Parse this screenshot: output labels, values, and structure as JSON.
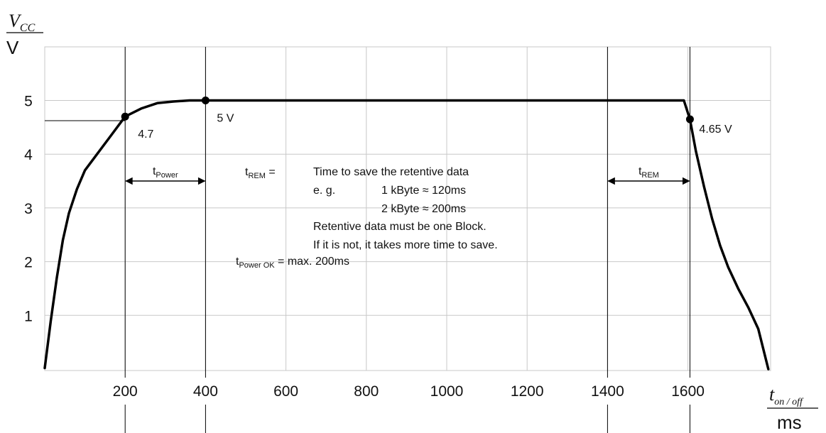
{
  "chart_data": {
    "type": "line",
    "title": "",
    "xlabel": {
      "var": "t",
      "sub": "on / off",
      "unit": "ms"
    },
    "ylabel": {
      "var": "V",
      "sub": "CC",
      "unit": "V"
    },
    "xlim": [
      0,
      1800
    ],
    "ylim": [
      0,
      6
    ],
    "grid": true,
    "x_ticks": [
      "200",
      "400",
      "600",
      "800",
      "1000",
      "1200",
      "1400",
      "1600"
    ],
    "y_ticks": [
      "1",
      "2",
      "3",
      "4",
      "5"
    ],
    "series": [
      {
        "x": [
          0,
          15,
          30,
          45,
          60,
          80,
          100,
          130,
          160,
          200,
          240,
          280,
          320,
          360,
          400,
          500,
          700,
          900,
          1100,
          1300,
          1500,
          1590,
          1605,
          1620,
          1640,
          1660,
          1680,
          1700,
          1725,
          1750,
          1775,
          1800
        ],
        "y": [
          0.02,
          0.9,
          1.7,
          2.4,
          2.9,
          3.35,
          3.7,
          4.0,
          4.3,
          4.7,
          4.85,
          4.95,
          4.98,
          5.0,
          5.0,
          5.0,
          5.0,
          5.0,
          5.0,
          5.0,
          5.0,
          5.0,
          4.65,
          4.05,
          3.4,
          2.8,
          2.3,
          1.9,
          1.5,
          1.15,
          0.75,
          0.0
        ]
      }
    ],
    "points": [
      {
        "x": 200,
        "y": 4.7,
        "label": "4.7"
      },
      {
        "x": 400,
        "y": 5.0,
        "label": "5 V"
      },
      {
        "x": 1605,
        "y": 4.65,
        "label": "4.65 V"
      }
    ],
    "markers_x": [
      200,
      400,
      1400,
      1605
    ],
    "intervals": [
      {
        "from": 200,
        "to": 400,
        "label_main": "t",
        "label_sub": "Power"
      },
      {
        "from": 1400,
        "to": 1605,
        "label_main": "t",
        "label_sub": "REM"
      }
    ]
  },
  "notes": {
    "trem_sym": "t",
    "trem_sub": "REM",
    "trem_eq": " =",
    "line1": "Time to save the retentive data",
    "eg": "e. g.",
    "line2": "1 kByte ≈ 120ms",
    "line3": "2 kByte ≈ 200ms",
    "line4": "Retentive data must be one Block.",
    "line5": "If it is not, it takes more time to save.",
    "tpok_sym": "t",
    "tpok_sub": "Power OK",
    "tpok_rest": " = max. 200ms"
  }
}
